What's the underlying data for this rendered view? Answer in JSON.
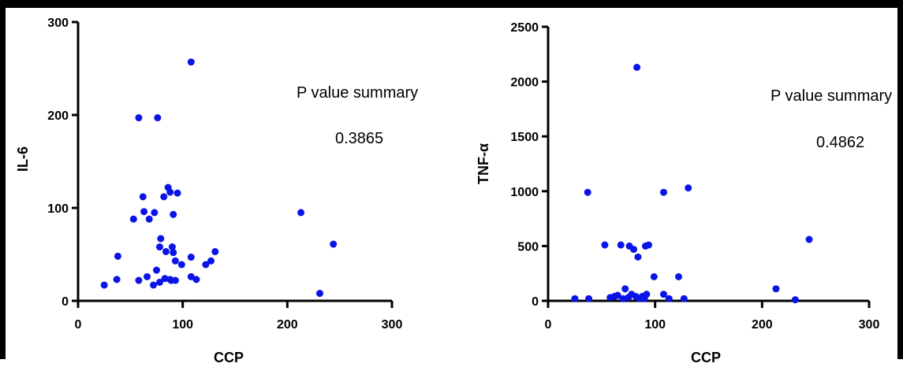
{
  "chart_data": [
    {
      "type": "scatter",
      "xlabel": "CCP",
      "ylabel": "IL-6",
      "xlim": [
        0,
        300
      ],
      "ylim": [
        0,
        300
      ],
      "xticks": [
        0,
        100,
        200,
        300
      ],
      "yticks": [
        0,
        100,
        200,
        300
      ],
      "color": "#0a14e6",
      "annotations": [
        "P value summary",
        "0.3865"
      ],
      "points": [
        [
          25,
          17
        ],
        [
          37,
          23
        ],
        [
          38,
          48
        ],
        [
          53,
          88
        ],
        [
          58,
          22
        ],
        [
          58,
          197
        ],
        [
          62,
          112
        ],
        [
          63,
          96
        ],
        [
          66,
          26
        ],
        [
          68,
          88
        ],
        [
          72,
          17
        ],
        [
          73,
          95
        ],
        [
          75,
          33
        ],
        [
          76,
          197
        ],
        [
          78,
          20
        ],
        [
          78,
          58
        ],
        [
          79,
          67
        ],
        [
          82,
          112
        ],
        [
          83,
          24
        ],
        [
          84,
          53
        ],
        [
          86,
          122
        ],
        [
          88,
          117
        ],
        [
          88,
          23
        ],
        [
          89,
          22
        ],
        [
          90,
          58
        ],
        [
          91,
          52
        ],
        [
          91,
          93
        ],
        [
          93,
          43
        ],
        [
          93,
          22
        ],
        [
          95,
          116
        ],
        [
          99,
          39
        ],
        [
          108,
          257
        ],
        [
          108,
          47
        ],
        [
          108,
          26
        ],
        [
          113,
          23
        ],
        [
          122,
          39
        ],
        [
          127,
          43
        ],
        [
          131,
          53
        ],
        [
          213,
          95
        ],
        [
          231,
          8
        ],
        [
          244,
          61
        ]
      ]
    },
    {
      "type": "scatter",
      "xlabel": "CCP",
      "ylabel": "TNF-α",
      "xlim": [
        0,
        300
      ],
      "ylim": [
        0,
        2500
      ],
      "xticks": [
        0,
        100,
        200,
        300
      ],
      "yticks": [
        0,
        500,
        1000,
        1500,
        2000,
        2500
      ],
      "color": "#0a14e6",
      "annotations": [
        "P value summary",
        "0.4862"
      ],
      "points": [
        [
          25,
          20
        ],
        [
          37,
          990
        ],
        [
          38,
          20
        ],
        [
          53,
          510
        ],
        [
          58,
          30
        ],
        [
          62,
          40
        ],
        [
          65,
          50
        ],
        [
          68,
          510
        ],
        [
          70,
          20
        ],
        [
          72,
          110
        ],
        [
          75,
          30
        ],
        [
          76,
          500
        ],
        [
          78,
          60
        ],
        [
          80,
          470
        ],
        [
          82,
          40
        ],
        [
          83,
          2130
        ],
        [
          84,
          400
        ],
        [
          85,
          20
        ],
        [
          88,
          40
        ],
        [
          90,
          20
        ],
        [
          91,
          500
        ],
        [
          92,
          60
        ],
        [
          94,
          510
        ],
        [
          99,
          220
        ],
        [
          108,
          990
        ],
        [
          108,
          60
        ],
        [
          113,
          20
        ],
        [
          122,
          220
        ],
        [
          127,
          20
        ],
        [
          131,
          1030
        ],
        [
          213,
          110
        ],
        [
          231,
          10
        ],
        [
          244,
          560
        ]
      ]
    }
  ]
}
